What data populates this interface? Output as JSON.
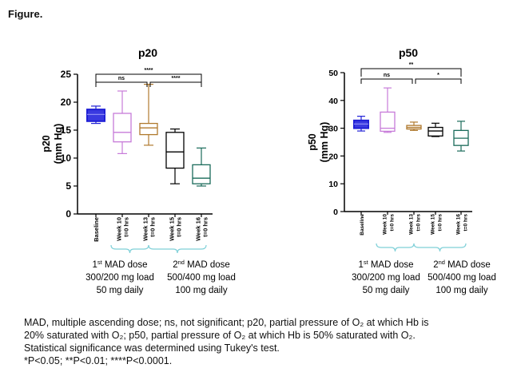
{
  "figure_label": "Figure.",
  "caption": {
    "line1": "MAD, multiple ascending dose; ns, not significant; p20, partial pressure of O₂ at which Hb is",
    "line2": "20% saturated with O₂; p50, partial pressure of O₂ at which Hb is 50% saturated with O₂.",
    "line3": "Statistical significance was determined using Tukey's test.",
    "line4": "*P<0.05; **P<0.01; ****P<0.0001."
  },
  "chart_data": [
    {
      "type": "boxplot",
      "title": "p20",
      "ylabel": "p20\n(mm Hg)",
      "ylim": [
        0,
        25
      ],
      "yticks": [
        0,
        5,
        10,
        15,
        20,
        25
      ],
      "categories": [
        "Baseline",
        "Week 10\nt=0 hrs",
        "Week 13\nt=0 hrs",
        "Week 15\nt=0 hrs",
        "Week 16\nt=0 hrs"
      ],
      "colors": [
        "#1f1fd6",
        "#c77bd9",
        "#b07a2e",
        "#000000",
        "#1a6b5a"
      ],
      "boxes": [
        {
          "min": 16.2,
          "q1": 16.6,
          "median": 17.8,
          "q3": 18.7,
          "max": 19.3
        },
        {
          "min": 10.8,
          "q1": 12.9,
          "median": 14.6,
          "q3": 18.0,
          "max": 22.0
        },
        {
          "min": 12.3,
          "q1": 14.2,
          "median": 15.4,
          "q3": 16.2,
          "max": 23.2
        },
        {
          "min": 5.4,
          "q1": 8.2,
          "median": 11.1,
          "q3": 14.6,
          "max": 15.2
        },
        {
          "min": 5.0,
          "q1": 5.4,
          "median": 6.4,
          "q3": 8.8,
          "max": 11.8
        }
      ],
      "significance": [
        {
          "from": 0,
          "to": 4,
          "label": "****"
        },
        {
          "from": 0,
          "to": 2,
          "label": "ns"
        },
        {
          "from": 2,
          "to": 4,
          "label": "****"
        }
      ],
      "groups": [
        {
          "lines": [
            "1st MAD dose",
            "300/200 mg load",
            "50 mg daily"
          ],
          "from": 1,
          "to": 2
        },
        {
          "lines": [
            "2nd MAD dose",
            "500/400 mg load",
            "100 mg daily"
          ],
          "from": 2,
          "to": 4
        }
      ]
    },
    {
      "type": "boxplot",
      "title": "p50",
      "ylabel": "p50\n(mm Hg)",
      "ylim": [
        0,
        50
      ],
      "yticks": [
        0,
        10,
        20,
        30,
        40,
        50
      ],
      "categories": [
        "Baseline",
        "Week 10\nt=0 hrs",
        "Week 13\nt=0 hrs",
        "Week 15\nt=0 hrs",
        "Week 16\nt=0 hrs"
      ],
      "colors": [
        "#1f1fd6",
        "#c77bd9",
        "#b07a2e",
        "#000000",
        "#1a6b5a"
      ],
      "boxes": [
        {
          "min": 29.0,
          "q1": 30.0,
          "median": 31.5,
          "q3": 32.8,
          "max": 34.3
        },
        {
          "min": 28.5,
          "q1": 28.9,
          "median": 30.0,
          "q3": 35.8,
          "max": 44.5
        },
        {
          "min": 29.2,
          "q1": 29.7,
          "median": 30.3,
          "q3": 31.0,
          "max": 32.2
        },
        {
          "min": 27.0,
          "q1": 27.2,
          "median": 29.0,
          "q3": 30.3,
          "max": 31.8
        },
        {
          "min": 21.8,
          "q1": 23.8,
          "median": 26.4,
          "q3": 29.2,
          "max": 32.5
        }
      ],
      "significance": [
        {
          "from": 0,
          "to": 4,
          "label": "**"
        },
        {
          "from": 0,
          "to": 2,
          "label": "ns"
        },
        {
          "from": 2,
          "to": 4,
          "label": "*"
        }
      ],
      "groups": [
        {
          "lines": [
            "1st MAD dose",
            "300/200 mg load",
            "50 mg daily"
          ],
          "from": 1,
          "to": 2
        },
        {
          "lines": [
            "2nd MAD dose",
            "500/400 mg load",
            "100 mg daily"
          ],
          "from": 2,
          "to": 4
        }
      ]
    }
  ]
}
